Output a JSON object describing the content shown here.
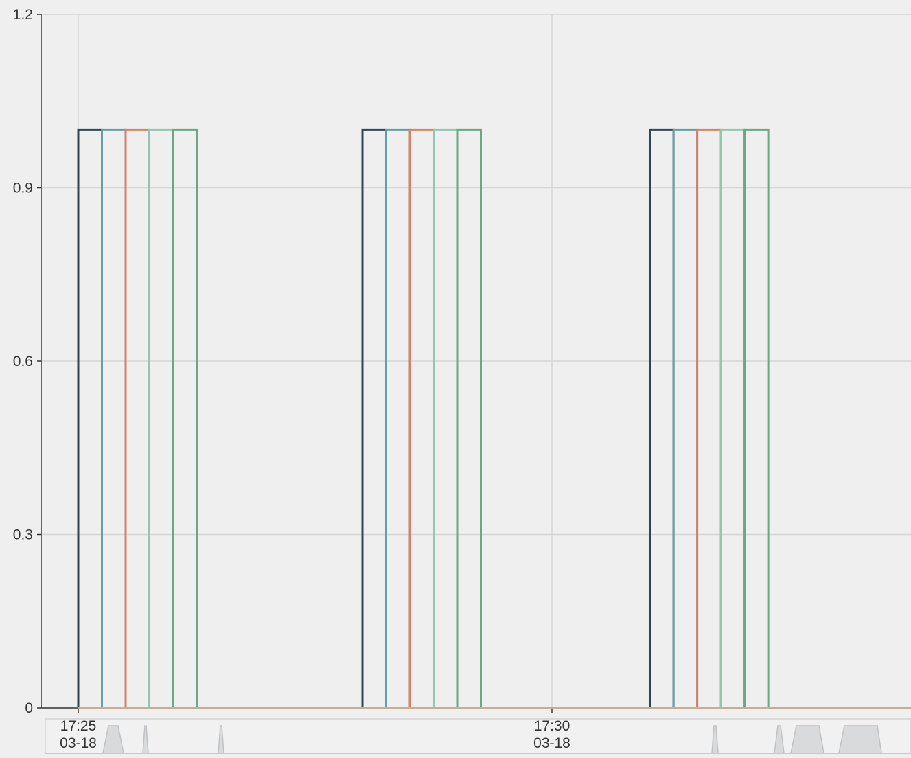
{
  "chart_data": {
    "type": "line",
    "step": true,
    "title": "",
    "xlabel": "",
    "ylabel": "",
    "ylim": [
      0,
      1.2
    ],
    "yticks": [
      {
        "value": 0,
        "label": "0"
      },
      {
        "value": 0.3,
        "label": "0.3"
      },
      {
        "value": 0.6,
        "label": "0.6"
      },
      {
        "value": 0.9,
        "label": "0.9"
      },
      {
        "value": 1.2,
        "label": "1.2"
      }
    ],
    "xlim_minutes": [
      "17:25",
      "17:33:45"
    ],
    "xticks": [
      {
        "time": "17:25",
        "date": "03-18"
      },
      {
        "time": "17:30",
        "date": "03-18"
      }
    ],
    "grid": true,
    "legend": "none",
    "series": [
      {
        "color": "#2f4554",
        "on": [
          [
            "17:25:00",
            "17:25:15"
          ],
          [
            "17:28:00",
            "17:28:15"
          ],
          [
            "17:31:02",
            "17:31:17"
          ]
        ]
      },
      {
        "color": "#61a0a8",
        "on": [
          [
            "17:25:15",
            "17:25:30"
          ],
          [
            "17:28:15",
            "17:28:30"
          ],
          [
            "17:31:17",
            "17:31:32"
          ]
        ]
      },
      {
        "color": "#d48265",
        "on": [
          [
            "17:25:30",
            "17:25:45"
          ],
          [
            "17:28:30",
            "17:28:45"
          ],
          [
            "17:31:32",
            "17:31:47"
          ]
        ]
      },
      {
        "color": "#91c7ae",
        "on": [
          [
            "17:25:45",
            "17:26:00"
          ],
          [
            "17:28:45",
            "17:29:00"
          ],
          [
            "17:31:47",
            "17:32:02"
          ]
        ]
      },
      {
        "color": "#6aa784",
        "on": [
          [
            "17:26:00",
            "17:26:15"
          ],
          [
            "17:29:00",
            "17:29:15"
          ],
          [
            "17:32:02",
            "17:32:17"
          ]
        ]
      },
      {
        "color": "#c4b090",
        "on": []
      }
    ],
    "on_value": 1,
    "off_value": 0,
    "datazoom": {
      "slider_color": "#d9dadc",
      "labels": [
        {
          "time": "17:25",
          "date": "03-18"
        },
        {
          "time": "17:30",
          "date": "03-18"
        }
      ]
    }
  }
}
